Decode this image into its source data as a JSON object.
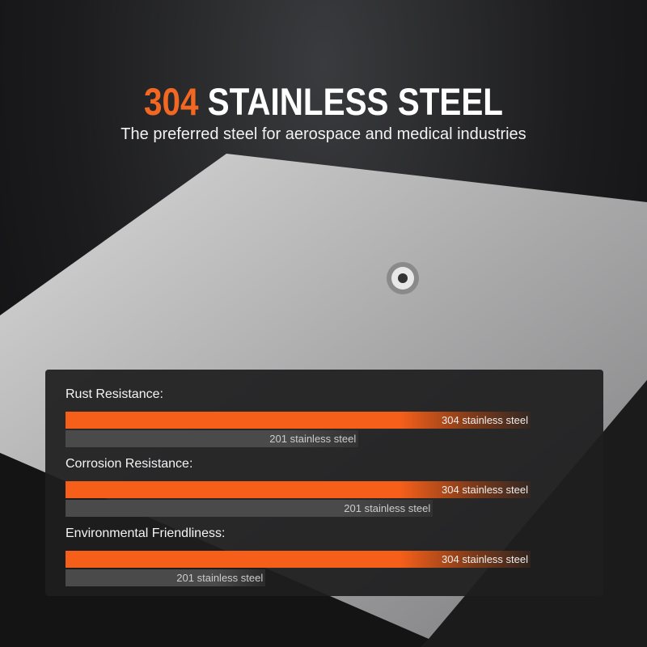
{
  "header": {
    "title_accent": "304",
    "title_rest": "STAINLESS STEEL",
    "subtitle": "The preferred steel for aerospace and medical industries"
  },
  "colors": {
    "accent": "#f55f1a",
    "comparison": "#4a4a4b"
  },
  "chart_data": {
    "type": "bar",
    "categories": [
      "Rust Resistance:",
      "Corrosion Resistance:",
      "Environmental Friendliness:"
    ],
    "series": [
      {
        "name": "304 stainless steel",
        "values": [
          1.0,
          1.0,
          1.0
        ]
      },
      {
        "name": "201 stainless steel",
        "values": [
          0.63,
          0.79,
          0.43
        ]
      }
    ]
  }
}
